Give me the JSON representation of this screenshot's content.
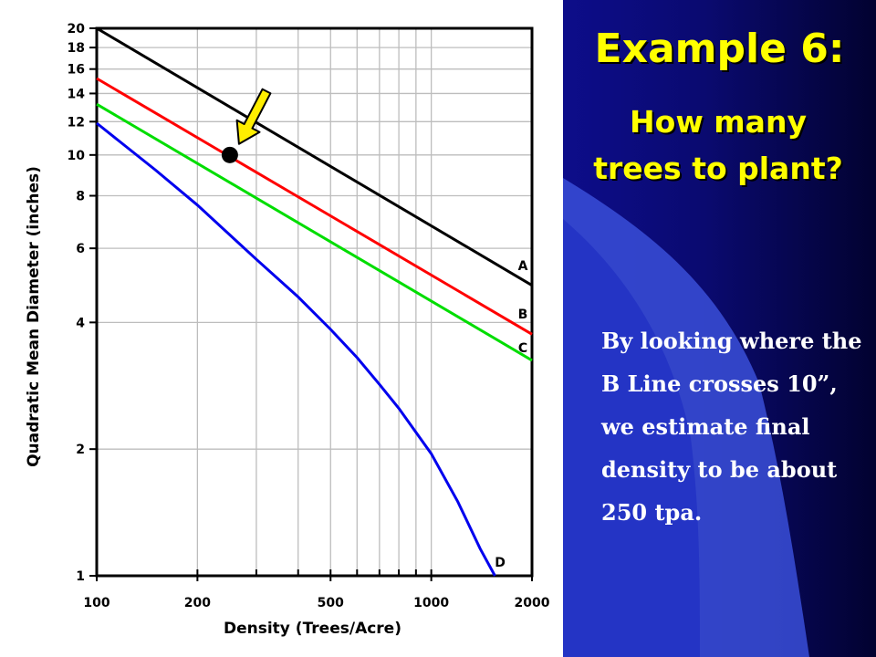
{
  "slide": {
    "title": "Example 6:",
    "subtitle": "How many trees to plant?",
    "body": "By looking where the B Line crosses 10”, we estimate final density to be about 250 tpa."
  },
  "chart_data": {
    "type": "line",
    "xlabel": "Density (Trees/Acre)",
    "ylabel": "Quadratic Mean Diameter (inches)",
    "x_scale": "log",
    "y_scale": "log",
    "xlim": [
      100,
      2000
    ],
    "ylim": [
      1,
      20
    ],
    "x_ticks": [
      100,
      200,
      500,
      1000,
      2000
    ],
    "x_tick_labels": [
      "100",
      "200",
      "500",
      "1000",
      "2000"
    ],
    "y_ticks": [
      1,
      2,
      4,
      6,
      8,
      10,
      12,
      14,
      16,
      18,
      20
    ],
    "y_tick_labels": [
      "1",
      "2",
      "4",
      "6",
      "8",
      "10",
      "12",
      "14",
      "16",
      "18",
      "20"
    ],
    "grid": true,
    "series": [
      {
        "name": "A",
        "color": "#000000",
        "x": [
          100,
          2000
        ],
        "y": [
          20,
          4.9
        ]
      },
      {
        "name": "B",
        "color": "#ff0000",
        "x": [
          100,
          2000
        ],
        "y": [
          15.2,
          3.75
        ]
      },
      {
        "name": "C",
        "color": "#00dd00",
        "x": [
          100,
          2000
        ],
        "y": [
          13.2,
          3.25
        ]
      },
      {
        "name": "D",
        "color": "#0000ee",
        "x": [
          100,
          150,
          200,
          300,
          400,
          500,
          600,
          700,
          800,
          1000,
          1200,
          1400,
          1550
        ],
        "y": [
          11.9,
          9.2,
          7.6,
          5.65,
          4.6,
          3.85,
          3.3,
          2.85,
          2.5,
          1.95,
          1.5,
          1.16,
          1.0
        ]
      }
    ],
    "annotations": [
      {
        "type": "marker",
        "x": 250,
        "y": 10,
        "color": "#000000"
      },
      {
        "type": "arrow",
        "target_x": 250,
        "target_y": 10,
        "color": "#ffee00"
      }
    ]
  }
}
